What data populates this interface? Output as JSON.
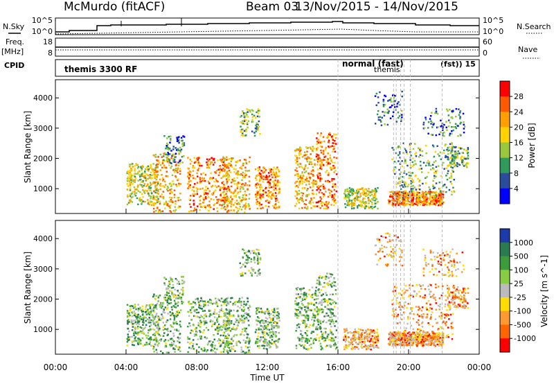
{
  "title": {
    "station": "McMurdo (fitACF)",
    "beam": "Beam 03",
    "date_range": "13/Nov/2015 - 14/Nov/2015"
  },
  "side_labels": {
    "nsky": "N.Sky",
    "freq": "Freq.",
    "mhz": "[MHz]",
    "cpid": "CPID",
    "nsearch": "N.Search",
    "nave": "Nave"
  },
  "cpid_labels": {
    "themis3300": "themis 3300 RF",
    "normal_fast": "normal (fast)",
    "themis": "themis",
    "tail": "(fst)) 15"
  },
  "noise_axis": {
    "left": [
      "10^5",
      "10^0"
    ],
    "right": [
      "10^5",
      "10^0"
    ]
  },
  "freq_axis": {
    "left": [
      "18",
      "8"
    ],
    "right": [
      "60",
      "0"
    ]
  },
  "colorbars": {
    "power": {
      "label": "Power [dB]",
      "ticks": [
        "28",
        "24",
        "20",
        "16",
        "12",
        "8",
        "4"
      ],
      "colors": [
        "#ff0000",
        "#ff5a00",
        "#ffa000",
        "#ffd200",
        "#9ac83c",
        "#2f9a5a",
        "#2a4c9a",
        "#0000ff"
      ]
    },
    "velocity": {
      "label": "Velocity [m s^-1]",
      "ticks": [
        "1000",
        "500",
        "100",
        "25",
        "-25",
        "-100",
        "-500",
        "-1000"
      ],
      "colors": [
        "#1c3aa8",
        "#2a7a52",
        "#3c9c3c",
        "#88cc44",
        "#bbbbbb",
        "#ffdd00",
        "#ff9a33",
        "#ff6600",
        "#ff0000"
      ]
    }
  },
  "chart_data": [
    {
      "type": "heatmap",
      "title": "Power",
      "xlabel": "Time UT",
      "ylabel": "Slant Range [km]",
      "xlim": [
        "00:00",
        "00:00"
      ],
      "x_ticks": [
        "00:00",
        "04:00",
        "08:00",
        "12:00",
        "16:00",
        "20:00",
        "00:00"
      ],
      "ylim": [
        180,
        4600
      ],
      "y_ticks": [
        1000,
        2000,
        3000,
        4000
      ],
      "colorbar": {
        "label": "Power [dB]",
        "range": [
          0,
          32
        ]
      }
    },
    {
      "type": "heatmap",
      "title": "Velocity",
      "xlabel": "Time UT",
      "ylabel": "Slant Range [km]",
      "xlim": [
        "00:00",
        "00:00"
      ],
      "x_ticks": [
        "00:00",
        "04:00",
        "08:00",
        "12:00",
        "16:00",
        "20:00",
        "00:00"
      ],
      "ylim": [
        180,
        4600
      ],
      "y_ticks": [
        1000,
        2000,
        3000,
        4000
      ],
      "colorbar": {
        "label": "Velocity [m s^-1]",
        "range": [
          -1000,
          1000
        ]
      }
    }
  ]
}
